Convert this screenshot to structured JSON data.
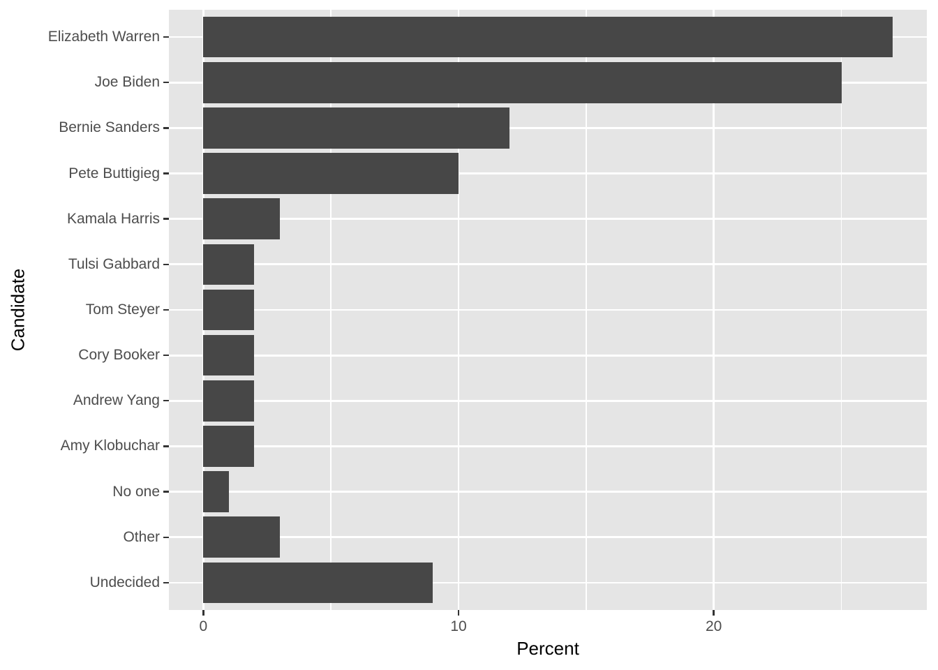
{
  "chart_data": {
    "type": "bar",
    "orientation": "horizontal",
    "title": "",
    "xlabel": "Percent",
    "ylabel": "Candidate",
    "categories": [
      "Elizabeth Warren",
      "Joe Biden",
      "Bernie Sanders",
      "Pete Buttigieg",
      "Kamala Harris",
      "Tulsi Gabbard",
      "Tom Steyer",
      "Cory Booker",
      "Andrew Yang",
      "Amy Klobuchar",
      "No one",
      "Other",
      "Undecided"
    ],
    "values": [
      27,
      25,
      12,
      10,
      3,
      2,
      2,
      2,
      2,
      2,
      1,
      3,
      9
    ],
    "x_ticks": [
      0,
      10,
      20
    ],
    "x_tick_labels": [
      "0",
      "10",
      "20"
    ],
    "x_minor_ticks": [
      5,
      15,
      25
    ],
    "xlim": [
      -1.35,
      28.35
    ],
    "grid": true,
    "legend": false,
    "colors": {
      "bar": "#474747",
      "panel_background": "#e5e5e5",
      "gridline": "#ffffff",
      "axis_text": "#4d4d4d",
      "axis_title": "#000000",
      "tick_mark": "#333333",
      "page_background": "#ffffff"
    }
  }
}
